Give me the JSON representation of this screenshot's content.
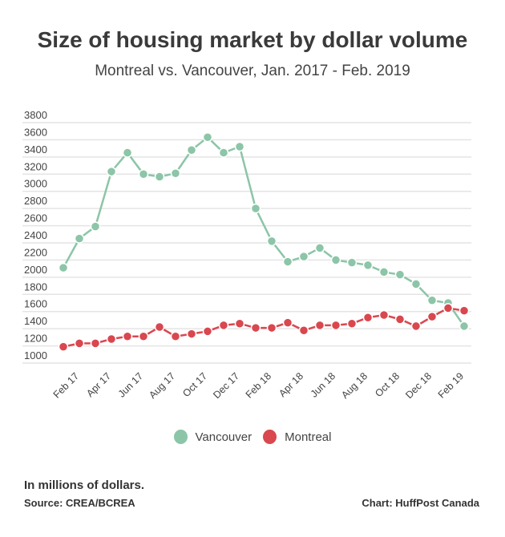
{
  "chart_data": {
    "type": "line",
    "title": "Size of housing market by dollar volume",
    "subtitle": "Montreal vs. Vancouver, Jan. 2017 - Feb. 2019",
    "x": [
      "Jan 17",
      "Feb 17",
      "Mar 17",
      "Apr 17",
      "May 17",
      "Jun 17",
      "Jul 17",
      "Aug 17",
      "Sep 17",
      "Oct 17",
      "Nov 17",
      "Dec 17",
      "Jan 18",
      "Feb 18",
      "Mar 18",
      "Apr 18",
      "May 18",
      "Jun 18",
      "Jul 18",
      "Aug 18",
      "Sep 18",
      "Oct 18",
      "Nov 18",
      "Dec 18",
      "Jan 19",
      "Feb 19"
    ],
    "x_tick_labels": [
      "Feb 17",
      "Apr 17",
      "Jun 17",
      "Aug 17",
      "Oct 17",
      "Dec 17",
      "Feb 18",
      "Apr 18",
      "Jun 18",
      "Aug 18",
      "Oct 18",
      "Dec 18",
      "Feb 19"
    ],
    "y_tick_labels": [
      "3800",
      "3600",
      "3400",
      "3200",
      "3000",
      "2800",
      "2600",
      "2400",
      "2200",
      "2000",
      "1800",
      "1600",
      "1400",
      "1200",
      "1000"
    ],
    "ylim": [
      1000,
      3800
    ],
    "grid": true,
    "legend_position": "bottom",
    "series": [
      {
        "name": "Vancouver",
        "color": "#8cc5a8",
        "values": [
          2110,
          2450,
          2590,
          3230,
          3450,
          3200,
          3170,
          3210,
          3480,
          3630,
          3450,
          3520,
          2800,
          2420,
          2180,
          2240,
          2340,
          2200,
          2170,
          2140,
          2060,
          2030,
          1920,
          1730,
          1700,
          1430
        ]
      },
      {
        "name": "Montreal",
        "color": "#d9474f",
        "values": [
          1190,
          1230,
          1230,
          1280,
          1310,
          1310,
          1420,
          1310,
          1340,
          1370,
          1440,
          1460,
          1410,
          1410,
          1470,
          1380,
          1440,
          1440,
          1460,
          1530,
          1560,
          1510,
          1430,
          1540,
          1640,
          1610
        ]
      }
    ]
  },
  "footer": {
    "note": "In millions of dollars.",
    "source": "Source: CREA/BCREA",
    "credit": "Chart: HuffPost Canada"
  }
}
